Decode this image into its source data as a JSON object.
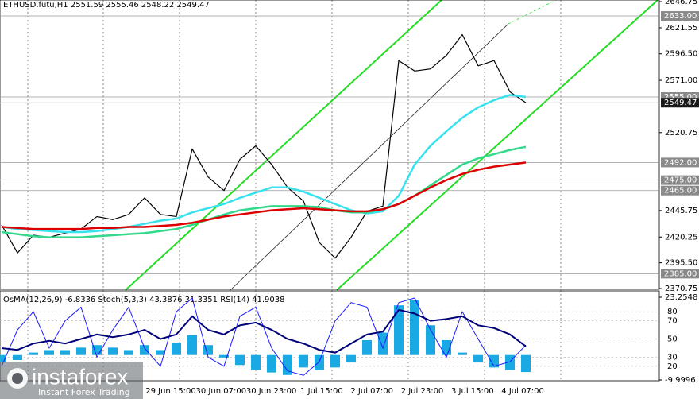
{
  "chart_data": [
    {
      "type": "line",
      "title": "ETHUSD.futu,H1  2551.59 2555.46 2548.22 2549.47",
      "ylim": [
        2370.75,
        2646.75
      ],
      "yticks": [
        2646.75,
        2621.55,
        {
          "value": 2596.5,
          "label": "2596.50"
        },
        {
          "value": 2571,
          "label": "2571.00"
        },
        2520.75,
        2445.75,
        2420.25,
        {
          "value": 2395.5,
          "label": "2395.50"
        },
        2370.75
      ],
      "levels": [
        {
          "value": 2633,
          "label": "2633.00",
          "color": "#8a8a8a"
        },
        {
          "value": 2555,
          "label": "2555.00",
          "color": "#8a8a8a"
        },
        {
          "value": 2549.47,
          "label": "2549.47",
          "color": "#1a1a1a"
        },
        {
          "value": 2492,
          "label": "2492.00",
          "color": "#8a8a8a"
        },
        {
          "value": 2475,
          "label": "2475.00",
          "color": "#8a8a8a"
        },
        {
          "value": 2465,
          "label": "2465.00",
          "color": "#8a8a8a"
        },
        {
          "value": 2385,
          "label": "2385.00",
          "color": "#8a8a8a"
        }
      ],
      "time_labels": [
        "29 Jun 15:00",
        "30 Jun 07:00",
        "30 Jun 23:00",
        "1 Jul 15:00",
        "2 Jul 07:00",
        "2 Jul 23:00",
        "3 Jul 15:00",
        "4 Jul 07:00"
      ],
      "series": [
        {
          "color": "#000000",
          "line_width": 1.2,
          "values": [
            2432,
            2405,
            2422,
            2420,
            2424,
            2428,
            2440,
            2437,
            2442,
            2458,
            2442,
            2440,
            2505,
            2478,
            2465,
            2495,
            2508,
            2490,
            2468,
            2455,
            2415,
            2400,
            2420,
            2445,
            2450,
            2590,
            2580,
            2582,
            2595,
            2615,
            2585,
            2590,
            2560,
            2549.47
          ]
        },
        {
          "color": "#36e2ee",
          "line_width": 2.5,
          "values": [
            2430,
            2428,
            2427,
            2426,
            2425,
            2425,
            2426,
            2428,
            2430,
            2433,
            2436,
            2438,
            2444,
            2448,
            2452,
            2458,
            2463,
            2468,
            2468,
            2464,
            2458,
            2452,
            2446,
            2443,
            2445,
            2460,
            2490,
            2508,
            2522,
            2535,
            2545,
            2552,
            2557,
            2555
          ]
        },
        {
          "color": "#33d98c",
          "line_width": 2.5,
          "values": [
            2425,
            2423,
            2421,
            2420,
            2420,
            2420,
            2421,
            2422,
            2423,
            2424,
            2426,
            2428,
            2432,
            2437,
            2442,
            2446,
            2448,
            2450,
            2450,
            2450,
            2449,
            2446,
            2444,
            2444,
            2447,
            2452,
            2460,
            2470,
            2480,
            2490,
            2496,
            2500,
            2504,
            2507
          ]
        },
        {
          "color": "#dd0000",
          "line_width": 2.5,
          "values": [
            2430,
            2429,
            2428,
            2428,
            2428,
            2428,
            2429,
            2429,
            2430,
            2430,
            2431,
            2432,
            2434,
            2437,
            2440,
            2442,
            2444,
            2446,
            2447,
            2448,
            2447,
            2446,
            2445,
            2445,
            2447,
            2452,
            2460,
            2468,
            2475,
            2481,
            2485,
            2488,
            2490,
            2492
          ]
        }
      ]
    },
    {
      "type": "indicator",
      "title": "OsMA(12,26,9) -6.8336  Stoch(5,3,3) 43.3876 31.3351  RSI(14) 41.9038",
      "ylim": [
        5,
        102
      ],
      "yticks": [
        80,
        70,
        50,
        30,
        20
      ],
      "y2lim": [
        -9.9996,
        23.2548
      ],
      "y2ticks": [
        23.2548,
        -9.9996
      ],
      "series": [
        {
          "style": "bar",
          "axis": "y2",
          "color": "#19a9e3",
          "values": [
            -3,
            -2,
            1,
            2,
            2,
            3,
            4,
            3,
            2,
            4,
            2,
            5,
            8,
            4,
            -1,
            -4,
            -6,
            -7,
            -8,
            -5,
            -6,
            -5,
            -3,
            6,
            9,
            20,
            22,
            12,
            6,
            1,
            -3,
            -5,
            -6,
            -6.8336
          ]
        },
        {
          "style": "line",
          "color": "#1a1aff",
          "line_width": 1,
          "values": [
            20,
            60,
            80,
            40,
            70,
            85,
            30,
            60,
            85,
            40,
            20,
            80,
            95,
            30,
            20,
            75,
            85,
            40,
            15,
            10,
            25,
            70,
            90,
            85,
            40,
            90,
            95,
            60,
            30,
            80,
            50,
            20,
            25,
            43.3876
          ]
        },
        {
          "style": "line",
          "color": "#00007a",
          "line_width": 2,
          "values": [
            40,
            38,
            45,
            48,
            45,
            50,
            55,
            52,
            55,
            60,
            50,
            55,
            75,
            60,
            55,
            65,
            68,
            60,
            50,
            45,
            38,
            35,
            45,
            55,
            58,
            82,
            78,
            70,
            72,
            75,
            65,
            62,
            55,
            41.9038
          ]
        }
      ]
    }
  ],
  "watermark": {
    "name": "instaforex",
    "tagline": "Instant Forex Trading"
  }
}
